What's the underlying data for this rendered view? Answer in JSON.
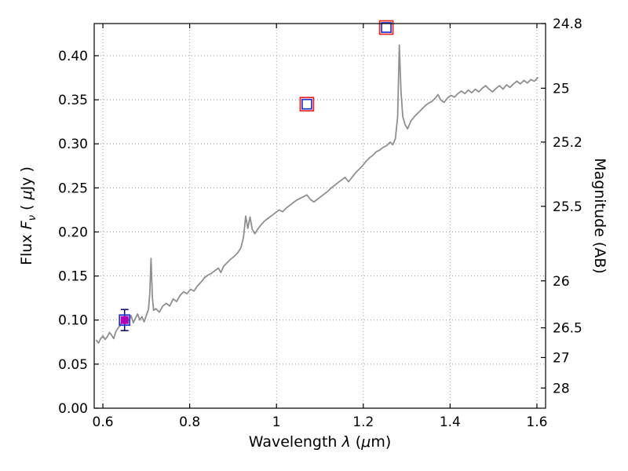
{
  "figure": {
    "background": "#ffffff"
  },
  "chart_data": {
    "type": "line",
    "title": "",
    "xlabel": {
      "p1": "Wavelength ",
      "sym": "λ",
      "p2": " (",
      "mu": "μ",
      "p3": "m)"
    },
    "ylabel_left": {
      "p1": "Flux ",
      "sym": "F",
      "sub": "ν",
      "p2": " ( ",
      "mu": "μ",
      "p3": "Jy )"
    },
    "ylabel_right": "Magnitude (AB)",
    "xlim": [
      0.58,
      1.62
    ],
    "ylim": [
      0.0,
      0.4365
    ],
    "grid": true,
    "legend": "none",
    "colors": {
      "spectrum": "#8f8f8f",
      "grid": "#999999",
      "axis": "#000000",
      "red_square": "#e62222",
      "blue_square": "#2233cc",
      "magenta_fill": "#b400b4",
      "error_bar": "#111166",
      "text": "#000000"
    },
    "x_ticks": [
      {
        "value": 0.6,
        "label": "0.6"
      },
      {
        "value": 0.8,
        "label": "0.8"
      },
      {
        "value": 1.0,
        "label": "1"
      },
      {
        "value": 1.2,
        "label": "1.2"
      },
      {
        "value": 1.4,
        "label": "1.4"
      },
      {
        "value": 1.6,
        "label": "1.6"
      }
    ],
    "y_ticks_left": [
      {
        "value": 0.0,
        "label": "0.00"
      },
      {
        "value": 0.05,
        "label": "0.05"
      },
      {
        "value": 0.1,
        "label": "0.10"
      },
      {
        "value": 0.15,
        "label": "0.15"
      },
      {
        "value": 0.2,
        "label": "0.20"
      },
      {
        "value": 0.25,
        "label": "0.25"
      },
      {
        "value": 0.3,
        "label": "0.30"
      },
      {
        "value": 0.35,
        "label": "0.35"
      },
      {
        "value": 0.4,
        "label": "0.40"
      }
    ],
    "y_ticks_right": [
      {
        "label": "24.8",
        "flux": 0.4365
      },
      {
        "label": "25",
        "flux": 0.3631
      },
      {
        "label": "25.2",
        "flux": 0.302
      },
      {
        "label": "25.5",
        "flux": 0.2291
      },
      {
        "label": "26",
        "flux": 0.1445
      },
      {
        "label": "26.5",
        "flux": 0.0912
      },
      {
        "label": "27",
        "flux": 0.0575
      },
      {
        "label": "28",
        "flux": 0.0229
      }
    ],
    "series": [
      {
        "name": "observed-spectrum",
        "color": "#8f8f8f",
        "points": [
          [
            0.585,
            0.077
          ],
          [
            0.59,
            0.074
          ],
          [
            0.595,
            0.079
          ],
          [
            0.6,
            0.082
          ],
          [
            0.605,
            0.078
          ],
          [
            0.61,
            0.081
          ],
          [
            0.615,
            0.086
          ],
          [
            0.62,
            0.083
          ],
          [
            0.625,
            0.079
          ],
          [
            0.63,
            0.087
          ],
          [
            0.635,
            0.091
          ],
          [
            0.64,
            0.094
          ],
          [
            0.645,
            0.1
          ],
          [
            0.65,
            0.097
          ],
          [
            0.655,
            0.104
          ],
          [
            0.66,
            0.099
          ],
          [
            0.665,
            0.105
          ],
          [
            0.67,
            0.097
          ],
          [
            0.675,
            0.102
          ],
          [
            0.68,
            0.107
          ],
          [
            0.685,
            0.1
          ],
          [
            0.69,
            0.104
          ],
          [
            0.695,
            0.098
          ],
          [
            0.7,
            0.105
          ],
          [
            0.705,
            0.112
          ],
          [
            0.708,
            0.13
          ],
          [
            0.711,
            0.17
          ],
          [
            0.714,
            0.126
          ],
          [
            0.717,
            0.111
          ],
          [
            0.722,
            0.113
          ],
          [
            0.73,
            0.109
          ],
          [
            0.738,
            0.116
          ],
          [
            0.746,
            0.119
          ],
          [
            0.754,
            0.116
          ],
          [
            0.762,
            0.124
          ],
          [
            0.77,
            0.121
          ],
          [
            0.778,
            0.128
          ],
          [
            0.786,
            0.132
          ],
          [
            0.794,
            0.13
          ],
          [
            0.802,
            0.135
          ],
          [
            0.81,
            0.133
          ],
          [
            0.818,
            0.139
          ],
          [
            0.826,
            0.143
          ],
          [
            0.834,
            0.148
          ],
          [
            0.842,
            0.151
          ],
          [
            0.85,
            0.153
          ],
          [
            0.858,
            0.156
          ],
          [
            0.866,
            0.159
          ],
          [
            0.872,
            0.154
          ],
          [
            0.878,
            0.161
          ],
          [
            0.886,
            0.165
          ],
          [
            0.894,
            0.169
          ],
          [
            0.902,
            0.172
          ],
          [
            0.91,
            0.176
          ],
          [
            0.918,
            0.182
          ],
          [
            0.924,
            0.194
          ],
          [
            0.929,
            0.218
          ],
          [
            0.934,
            0.204
          ],
          [
            0.939,
            0.217
          ],
          [
            0.944,
            0.203
          ],
          [
            0.95,
            0.198
          ],
          [
            0.958,
            0.204
          ],
          [
            0.966,
            0.209
          ],
          [
            0.974,
            0.213
          ],
          [
            0.982,
            0.216
          ],
          [
            0.99,
            0.219
          ],
          [
            0.998,
            0.222
          ],
          [
            1.006,
            0.225
          ],
          [
            1.014,
            0.223
          ],
          [
            1.022,
            0.227
          ],
          [
            1.03,
            0.23
          ],
          [
            1.038,
            0.233
          ],
          [
            1.046,
            0.236
          ],
          [
            1.054,
            0.238
          ],
          [
            1.062,
            0.24
          ],
          [
            1.07,
            0.242
          ],
          [
            1.078,
            0.237
          ],
          [
            1.086,
            0.234
          ],
          [
            1.094,
            0.237
          ],
          [
            1.102,
            0.24
          ],
          [
            1.11,
            0.243
          ],
          [
            1.118,
            0.246
          ],
          [
            1.126,
            0.25
          ],
          [
            1.134,
            0.253
          ],
          [
            1.142,
            0.256
          ],
          [
            1.15,
            0.259
          ],
          [
            1.158,
            0.262
          ],
          [
            1.166,
            0.257
          ],
          [
            1.174,
            0.262
          ],
          [
            1.182,
            0.267
          ],
          [
            1.19,
            0.271
          ],
          [
            1.198,
            0.275
          ],
          [
            1.206,
            0.28
          ],
          [
            1.214,
            0.284
          ],
          [
            1.222,
            0.287
          ],
          [
            1.23,
            0.291
          ],
          [
            1.238,
            0.293
          ],
          [
            1.246,
            0.296
          ],
          [
            1.254,
            0.298
          ],
          [
            1.262,
            0.302
          ],
          [
            1.268,
            0.299
          ],
          [
            1.274,
            0.306
          ],
          [
            1.279,
            0.33
          ],
          [
            1.283,
            0.412
          ],
          [
            1.287,
            0.358
          ],
          [
            1.291,
            0.331
          ],
          [
            1.296,
            0.322
          ],
          [
            1.302,
            0.317
          ],
          [
            1.31,
            0.326
          ],
          [
            1.318,
            0.331
          ],
          [
            1.326,
            0.335
          ],
          [
            1.334,
            0.339
          ],
          [
            1.342,
            0.343
          ],
          [
            1.35,
            0.346
          ],
          [
            1.358,
            0.348
          ],
          [
            1.366,
            0.352
          ],
          [
            1.372,
            0.356
          ],
          [
            1.378,
            0.35
          ],
          [
            1.386,
            0.347
          ],
          [
            1.394,
            0.352
          ],
          [
            1.402,
            0.355
          ],
          [
            1.41,
            0.353
          ],
          [
            1.418,
            0.357
          ],
          [
            1.426,
            0.36
          ],
          [
            1.434,
            0.357
          ],
          [
            1.442,
            0.361
          ],
          [
            1.45,
            0.358
          ],
          [
            1.458,
            0.362
          ],
          [
            1.466,
            0.359
          ],
          [
            1.474,
            0.363
          ],
          [
            1.482,
            0.366
          ],
          [
            1.49,
            0.362
          ],
          [
            1.498,
            0.359
          ],
          [
            1.506,
            0.363
          ],
          [
            1.514,
            0.366
          ],
          [
            1.522,
            0.362
          ],
          [
            1.53,
            0.367
          ],
          [
            1.538,
            0.364
          ],
          [
            1.546,
            0.368
          ],
          [
            1.554,
            0.371
          ],
          [
            1.562,
            0.368
          ],
          [
            1.57,
            0.372
          ],
          [
            1.578,
            0.369
          ],
          [
            1.586,
            0.373
          ],
          [
            1.594,
            0.371
          ],
          [
            1.602,
            0.375
          ]
        ]
      }
    ],
    "photometry": [
      {
        "x": 0.65,
        "y": 0.1,
        "yerr": 0.012,
        "style": "filled"
      },
      {
        "x": 1.07,
        "y": 0.345,
        "yerr": 0.0,
        "style": "open"
      },
      {
        "x": 1.253,
        "y": 0.432,
        "yerr": 0.0,
        "style": "open"
      }
    ]
  }
}
